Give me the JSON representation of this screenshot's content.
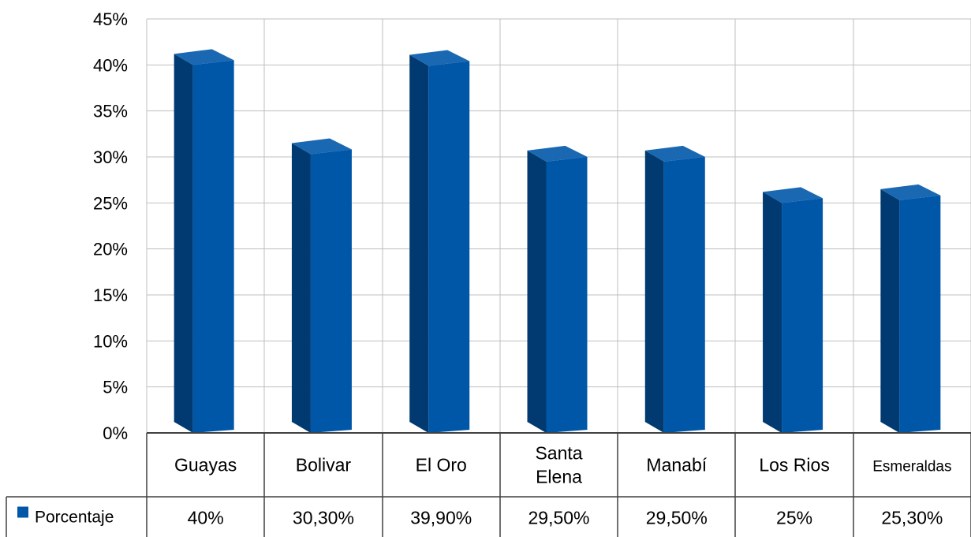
{
  "chart_data": {
    "type": "bar",
    "style": "3d-column-with-data-table",
    "categories": [
      "Guayas",
      "Bolivar",
      "El Oro",
      "Santa Elena",
      "Manabí",
      "Los Rios",
      "Esmeraldas"
    ],
    "category_lines": [
      [
        "Guayas"
      ],
      [
        "Bolivar"
      ],
      [
        "El Oro"
      ],
      [
        "Santa",
        "Elena"
      ],
      [
        "Manabí"
      ],
      [
        "Los Rios"
      ],
      [
        "Esmeraldas"
      ]
    ],
    "series": [
      {
        "name": "Porcentaje",
        "values": [
          40,
          30.3,
          39.9,
          29.5,
          29.5,
          25,
          25.3
        ],
        "labels": [
          "40%",
          "30,30%",
          "39,90%",
          "29,50%",
          "29,50%",
          "25%",
          "25,30%"
        ]
      }
    ],
    "y_ticks": [
      "0%",
      "5%",
      "10%",
      "15%",
      "20%",
      "25%",
      "30%",
      "35%",
      "40%",
      "45%"
    ],
    "ylim": [
      0,
      45
    ],
    "y_step": 5,
    "grid": true,
    "legend": "data-table-left",
    "colors": {
      "bar_front": "#0057A8",
      "bar_side": "#003A70",
      "bar_top": "#1A68B2",
      "grid": "#BFBFBF",
      "axis": "#404040",
      "legend_key": "#0057A8"
    }
  }
}
